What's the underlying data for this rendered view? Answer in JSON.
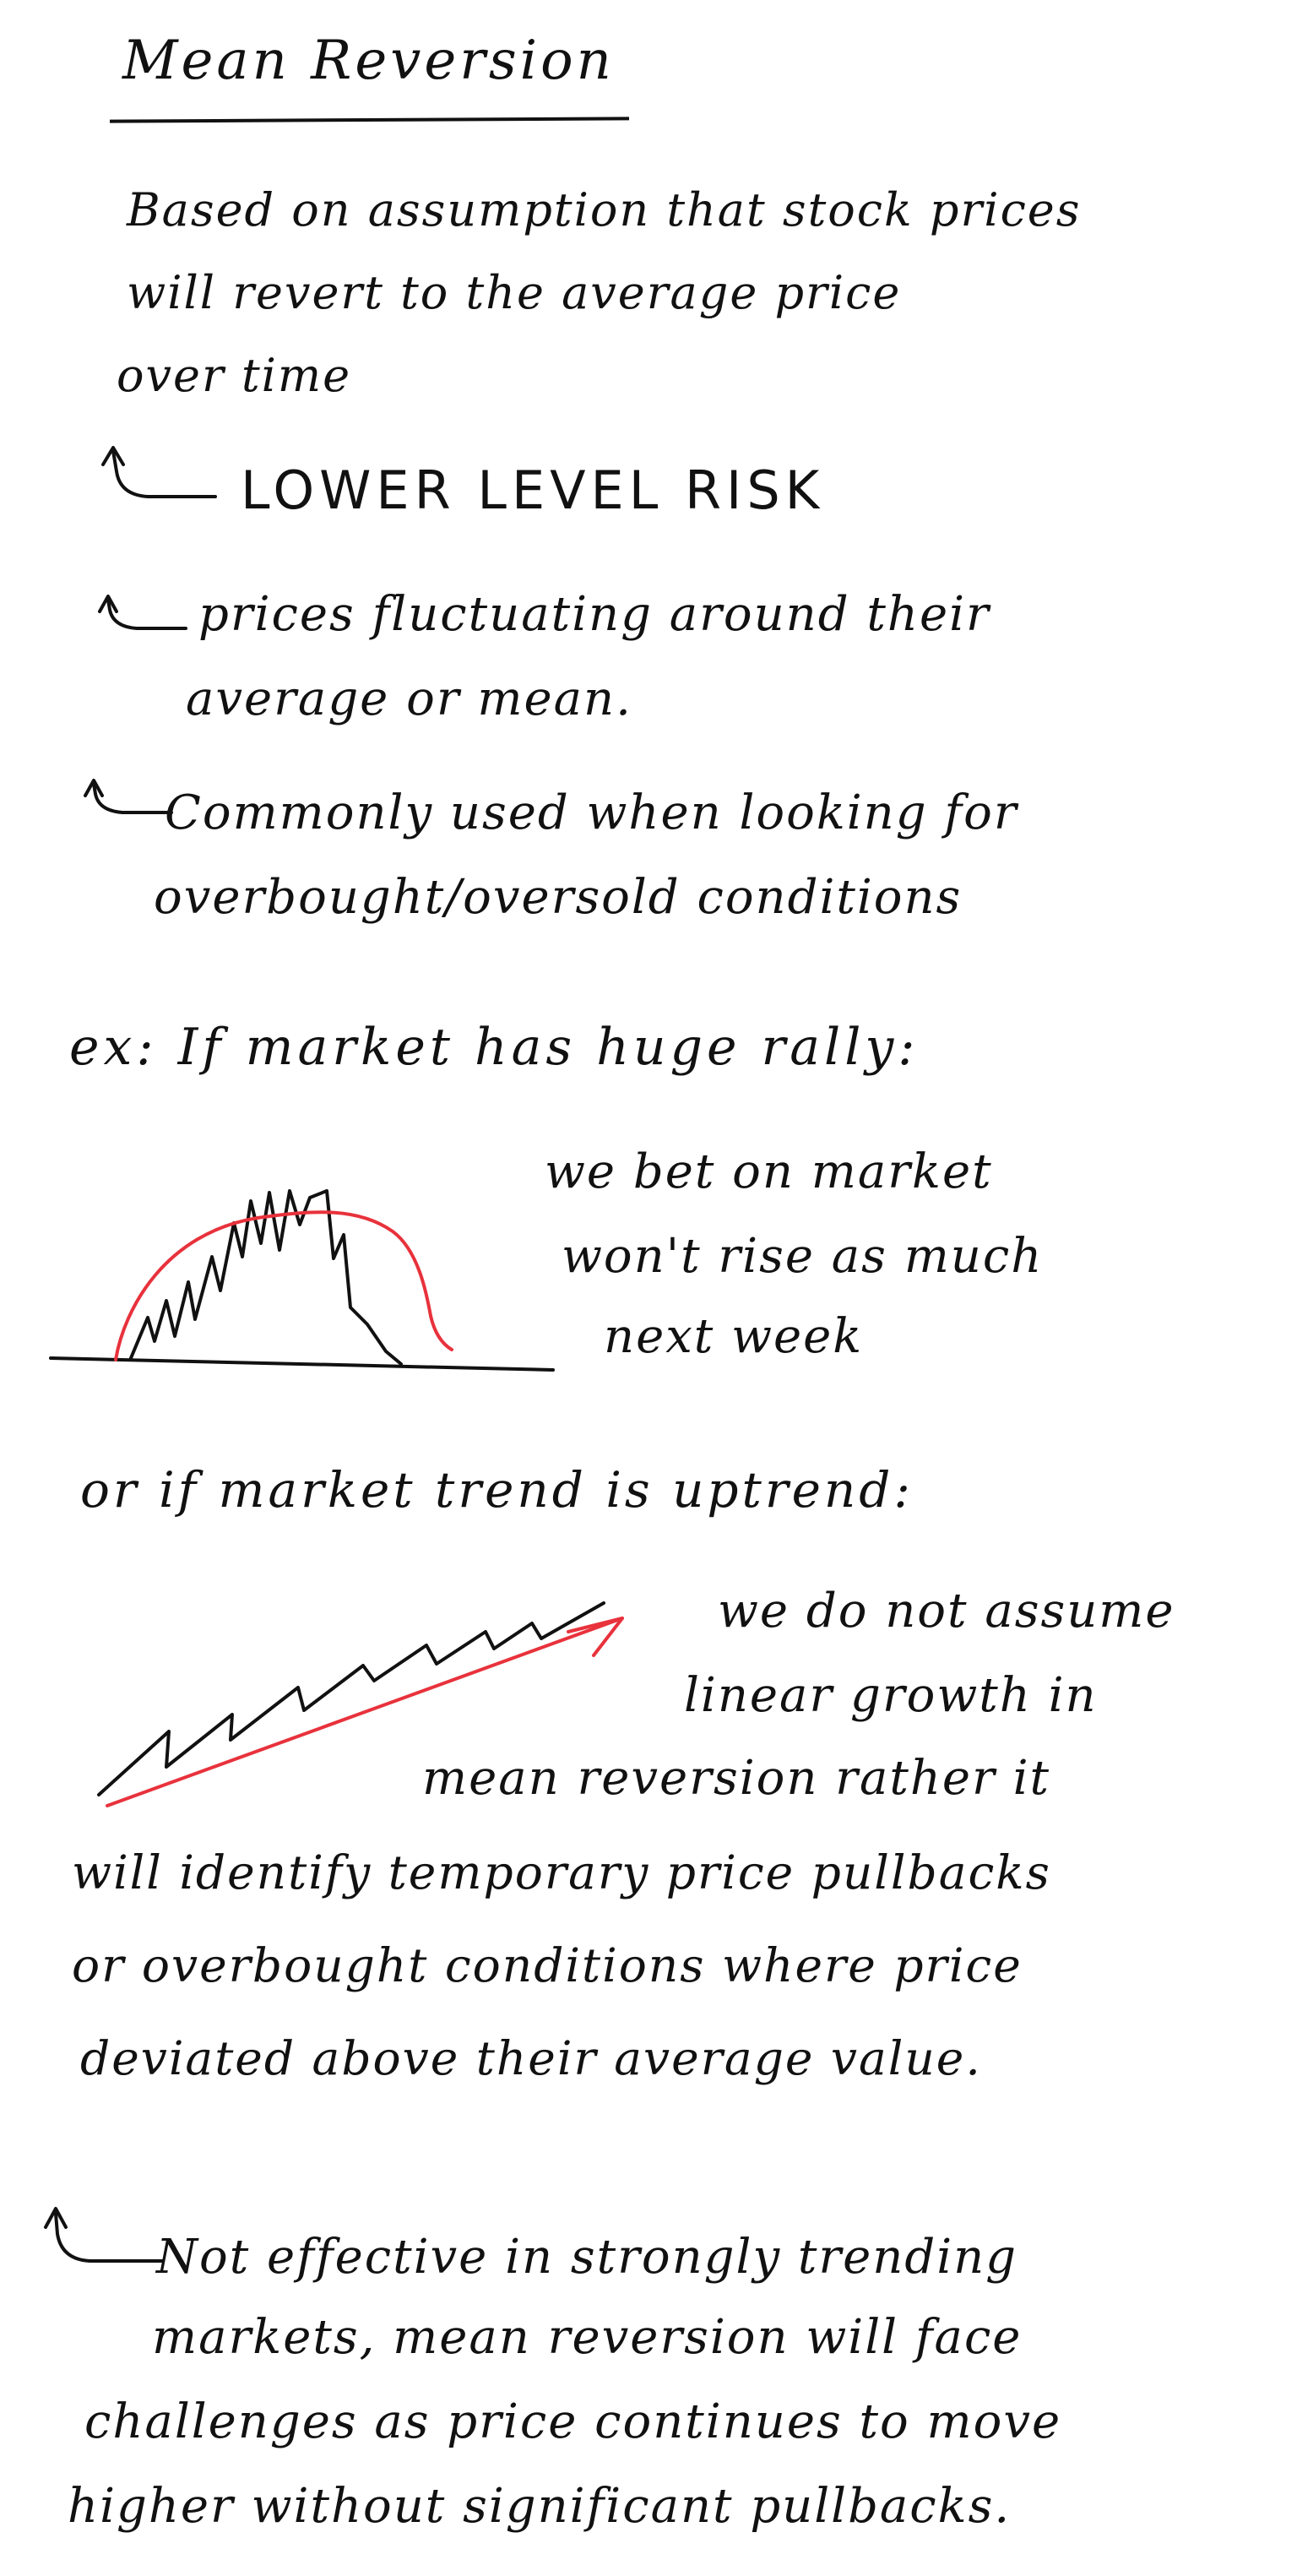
{
  "title": "Mean Reversion",
  "intro": [
    "Based on assumption that stock prices",
    "will revert to the average price",
    "over time"
  ],
  "bullet_risk": "LOWER LEVEL RISK",
  "bullet_fluct": [
    "prices fluctuating around their",
    "average or mean."
  ],
  "bullet_common": [
    "Commonly used when looking for",
    "overbought/oversold conditions"
  ],
  "example": {
    "heading": "ex:  If market has huge rally:",
    "note": [
      "we bet on market",
      "won't rise as much",
      "next week"
    ]
  },
  "uptrend": {
    "heading": "or if market trend is uptrend:",
    "note_right": [
      "we do not assume",
      "linear growth in",
      "mean reversion rather it"
    ],
    "note_full": [
      "will identify temporary price pullbacks",
      "or overbought conditions where price",
      "deviated above their average value."
    ]
  },
  "bullet_trend": [
    "Not effective in strongly trending",
    "markets, mean reversion will face",
    "challenges as price continues to move",
    "higher without significant pullbacks."
  ],
  "colors": {
    "ink": "#111111",
    "accent": "#e8323c"
  }
}
